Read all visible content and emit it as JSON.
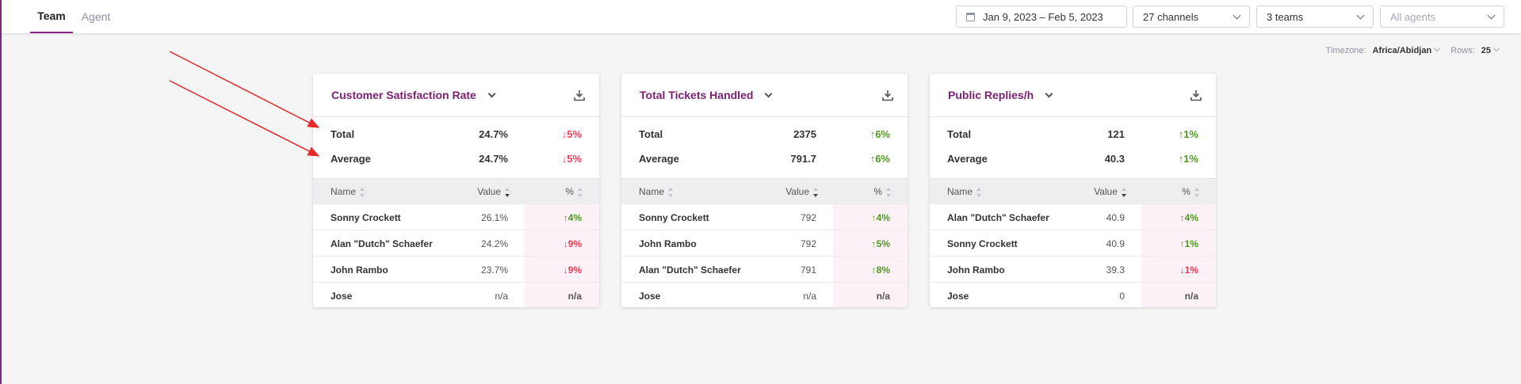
{
  "tabs": [
    {
      "label": "Team",
      "active": true
    },
    {
      "label": "Agent",
      "active": false
    }
  ],
  "filters": {
    "date_range": "Jan 9, 2023 – Feb 5, 2023",
    "channels": "27 channels",
    "teams": "3 teams",
    "agents_placeholder": "All agents"
  },
  "options": {
    "timezone_label": "Timezone:",
    "timezone_value": "Africa/Abidjan",
    "rows_label": "Rows:",
    "rows_value": "25"
  },
  "table_headers": {
    "name": "Name",
    "value": "Value",
    "pct": "%"
  },
  "summary_labels": {
    "total": "Total",
    "average": "Average"
  },
  "colors": {
    "accent": "#7b1f73",
    "up": "#4f9a1e",
    "down": "#e8405a",
    "annotation": "#e8282b"
  },
  "cards": [
    {
      "title": "Customer Satisfaction Rate",
      "total": {
        "value": "24.7%",
        "change": "↓5%",
        "dir": "down"
      },
      "average": {
        "value": "24.7%",
        "change": "↓5%",
        "dir": "down"
      },
      "rows": [
        {
          "name": "Sonny Crockett",
          "value": "26.1%",
          "change": "↑4%",
          "dir": "up"
        },
        {
          "name": "Alan \"Dutch\" Schaefer",
          "value": "24.2%",
          "change": "↓9%",
          "dir": "down"
        },
        {
          "name": "John Rambo",
          "value": "23.7%",
          "change": "↓9%",
          "dir": "down"
        },
        {
          "name": "Jose",
          "value": "n/a",
          "change": "n/a",
          "dir": "none"
        }
      ]
    },
    {
      "title": "Total Tickets Handled",
      "total": {
        "value": "2375",
        "change": "↑6%",
        "dir": "up"
      },
      "average": {
        "value": "791.7",
        "change": "↑6%",
        "dir": "up"
      },
      "rows": [
        {
          "name": "Sonny Crockett",
          "value": "792",
          "change": "↑4%",
          "dir": "up"
        },
        {
          "name": "John Rambo",
          "value": "792",
          "change": "↑5%",
          "dir": "up"
        },
        {
          "name": "Alan \"Dutch\" Schaefer",
          "value": "791",
          "change": "↑8%",
          "dir": "up"
        },
        {
          "name": "Jose",
          "value": "n/a",
          "change": "n/a",
          "dir": "none"
        }
      ]
    },
    {
      "title": "Public Replies/h",
      "total": {
        "value": "121",
        "change": "↑1%",
        "dir": "up"
      },
      "average": {
        "value": "40.3",
        "change": "↑1%",
        "dir": "up"
      },
      "rows": [
        {
          "name": "Alan \"Dutch\" Schaefer",
          "value": "40.9",
          "change": "↑4%",
          "dir": "up"
        },
        {
          "name": "Sonny Crockett",
          "value": "40.9",
          "change": "↑1%",
          "dir": "up"
        },
        {
          "name": "John Rambo",
          "value": "39.3",
          "change": "↓1%",
          "dir": "down"
        },
        {
          "name": "Jose",
          "value": "0",
          "change": "n/a",
          "dir": "none"
        }
      ]
    }
  ]
}
